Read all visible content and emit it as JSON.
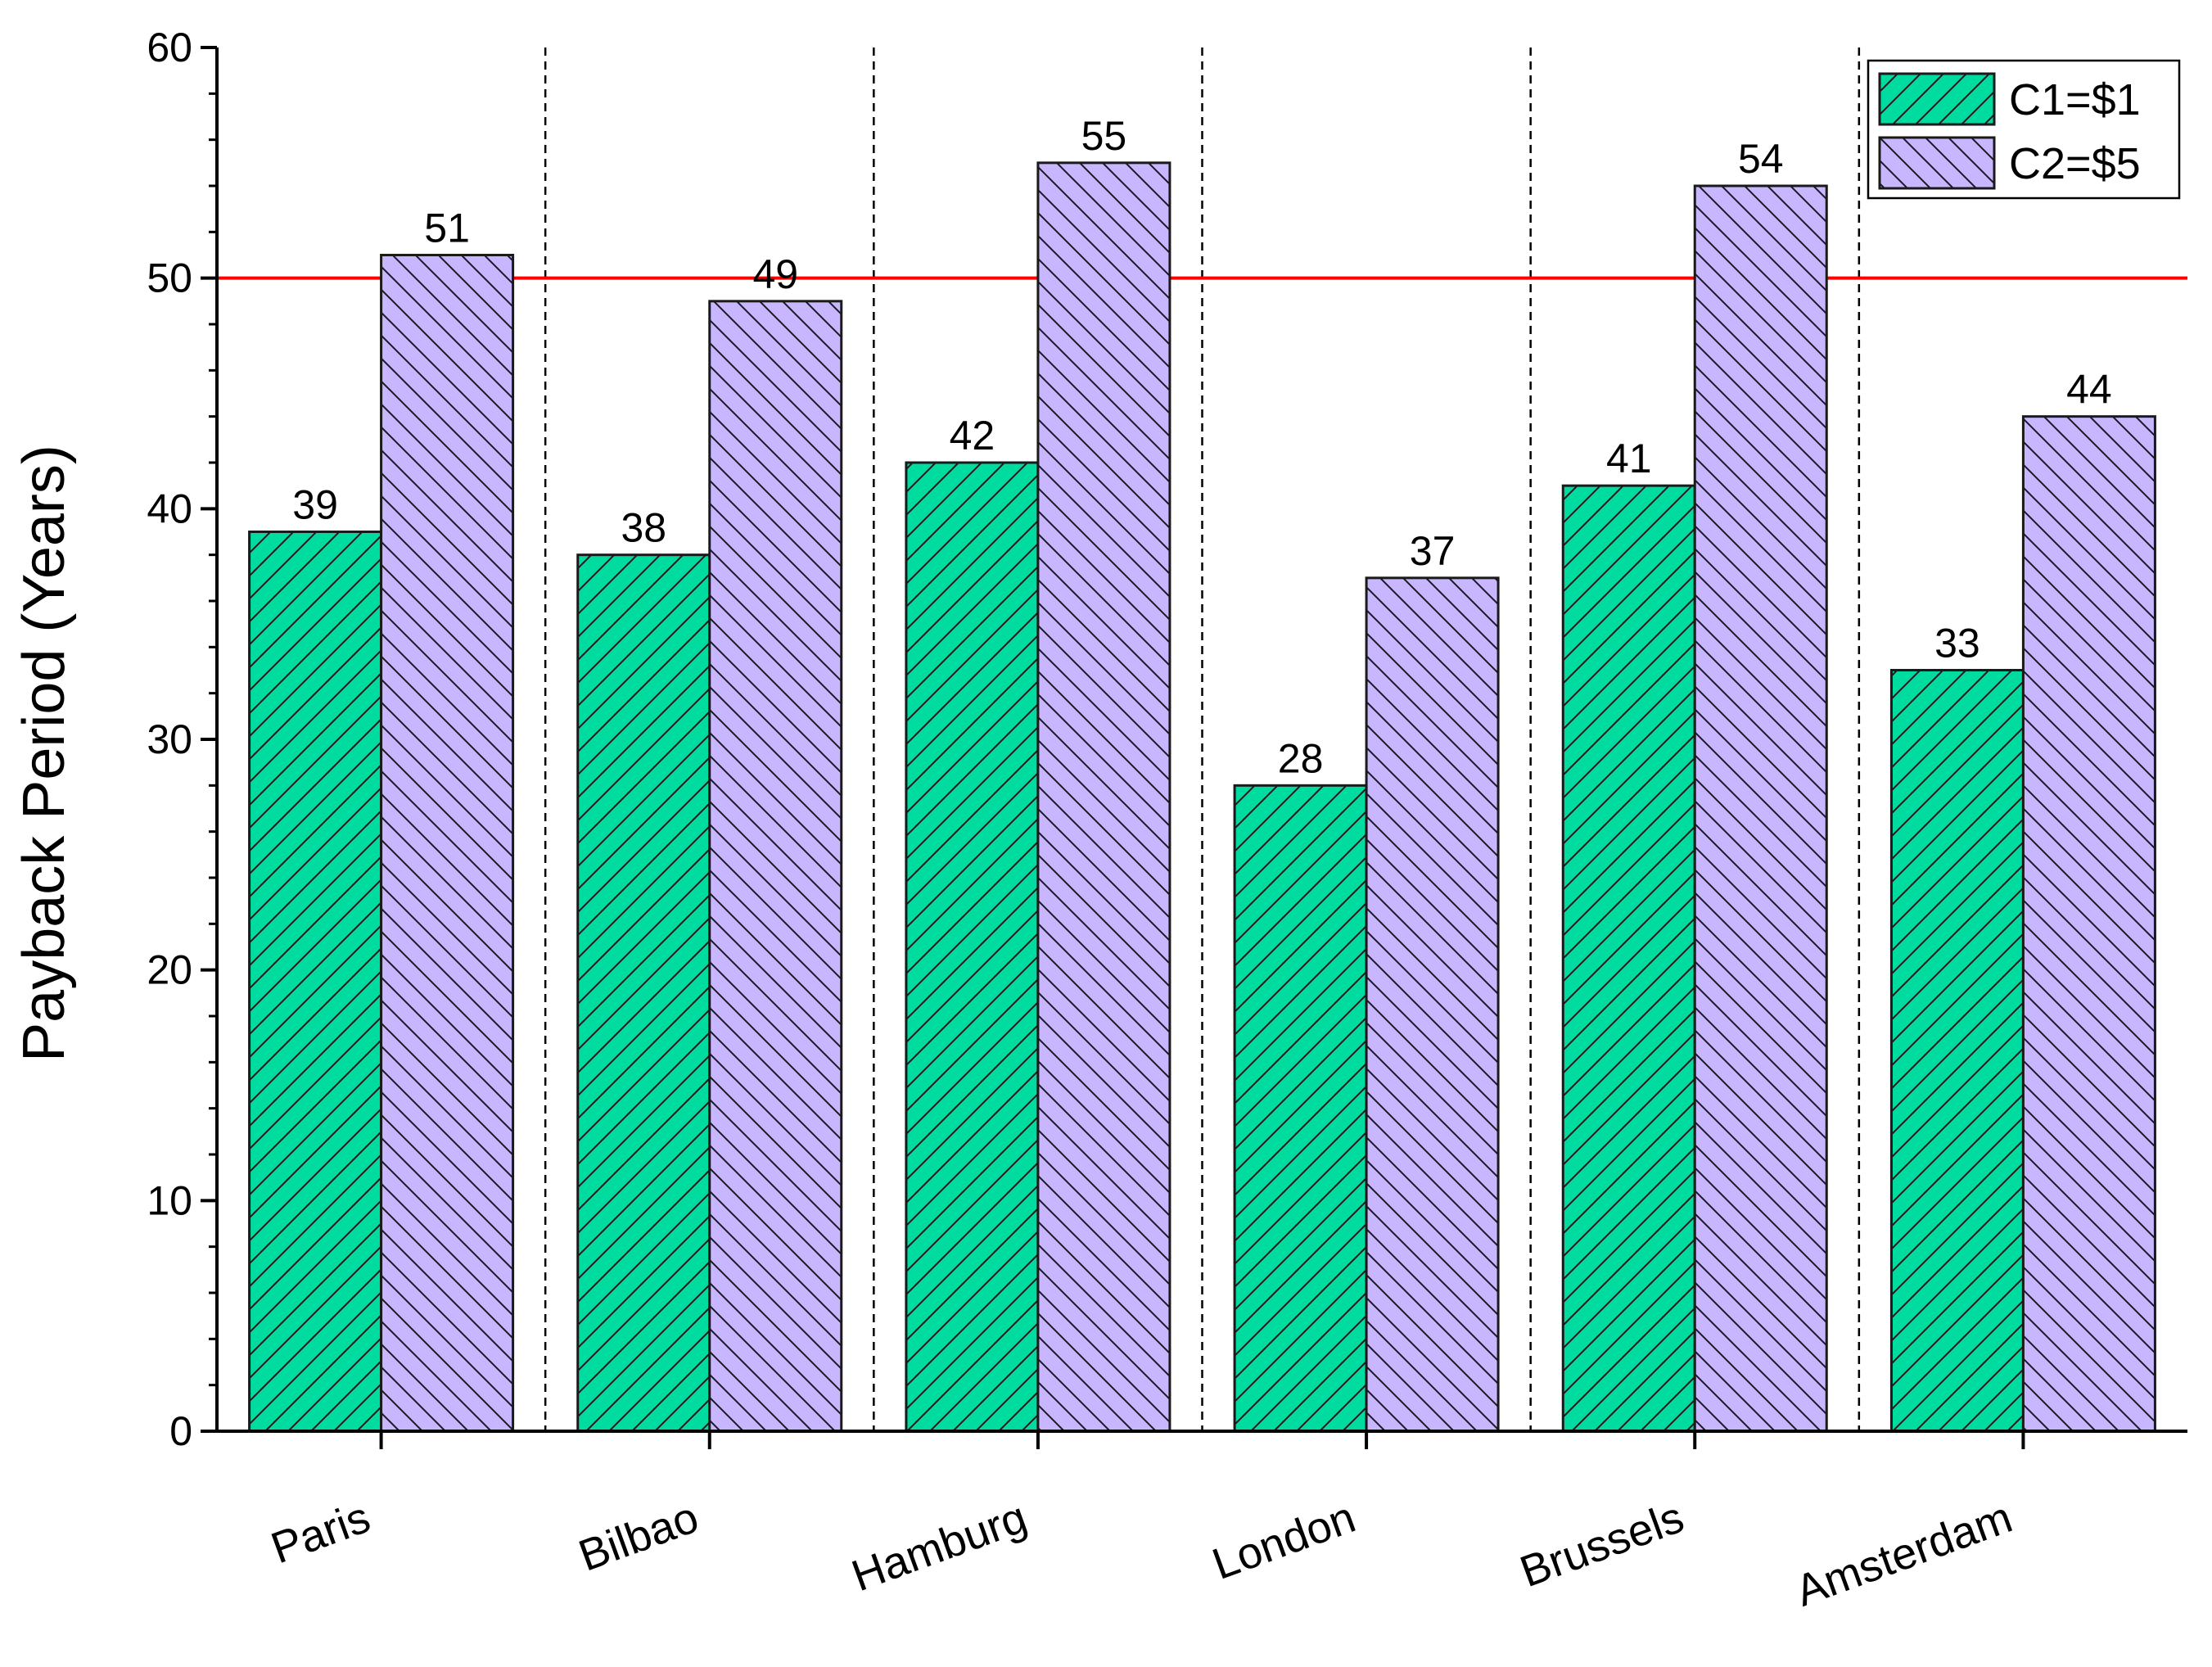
{
  "chart_data": {
    "type": "bar",
    "categories": [
      "Paris",
      "Bilbao",
      "Hamburg",
      "London",
      "Brussels",
      "Amsterdam"
    ],
    "series": [
      {
        "name": "C1=$1",
        "values": [
          39,
          38,
          42,
          28,
          41,
          33
        ],
        "color": "#00dba0",
        "hatch": "forward"
      },
      {
        "name": "C2=$5",
        "values": [
          51,
          49,
          55,
          37,
          54,
          44
        ],
        "color": "#c8b6ff",
        "hatch": "backward"
      }
    ],
    "ylabel": "Payback Period (Years)",
    "ylim": [
      0,
      60
    ],
    "yticks": [
      0,
      10,
      20,
      30,
      40,
      50,
      60
    ],
    "reference_line": {
      "y": 50,
      "color": "#ff0000"
    },
    "category_separators": "dashed",
    "legend_position": "top-right",
    "grid": false
  }
}
